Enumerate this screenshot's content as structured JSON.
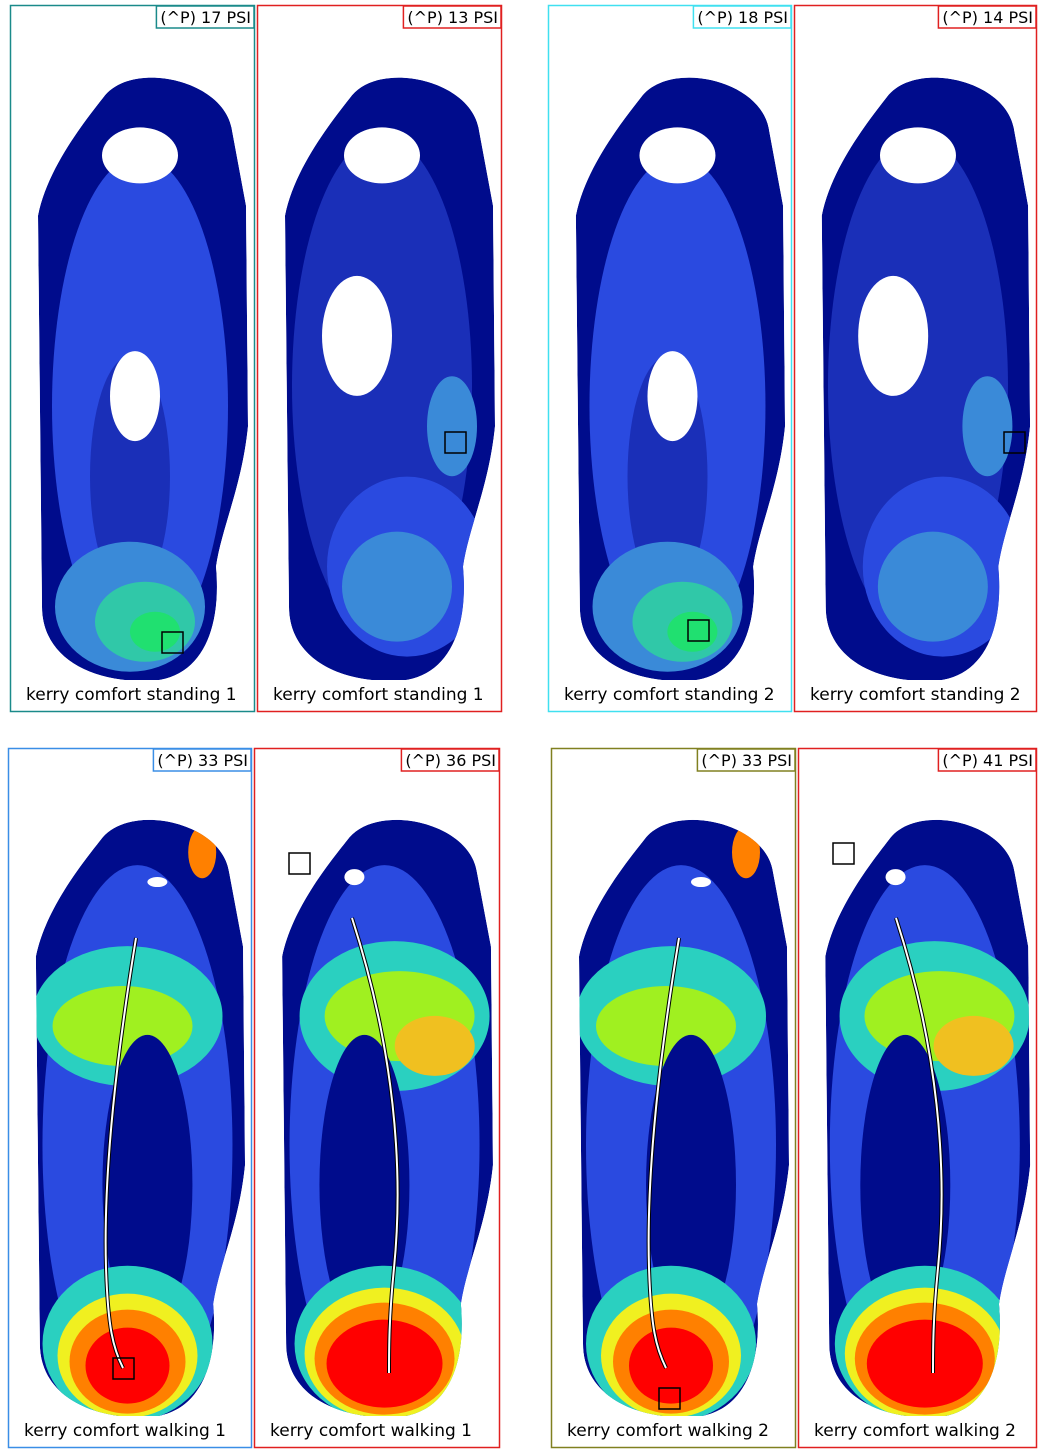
{
  "panels": [
    {
      "pressure": "(^P) 17 PSI",
      "label": "kerry comfort standing 1"
    },
    {
      "pressure": "(^P) 13 PSI",
      "label": "kerry comfort standing 1"
    },
    {
      "pressure": "(^P) 18 PSI",
      "label": "kerry comfort standing 2"
    },
    {
      "pressure": "(^P) 14 PSI",
      "label": "kerry comfort standing 2"
    },
    {
      "pressure": "(^P) 33 PSI",
      "label": "kerry comfort walking 1"
    },
    {
      "pressure": "(^P) 36 PSI",
      "label": "kerry comfort walking 1"
    },
    {
      "pressure": "(^P) 33 PSI",
      "label": "kerry comfort walking 2"
    },
    {
      "pressure": "(^P) 41 PSI",
      "label": "kerry comfort walking 2"
    }
  ]
}
